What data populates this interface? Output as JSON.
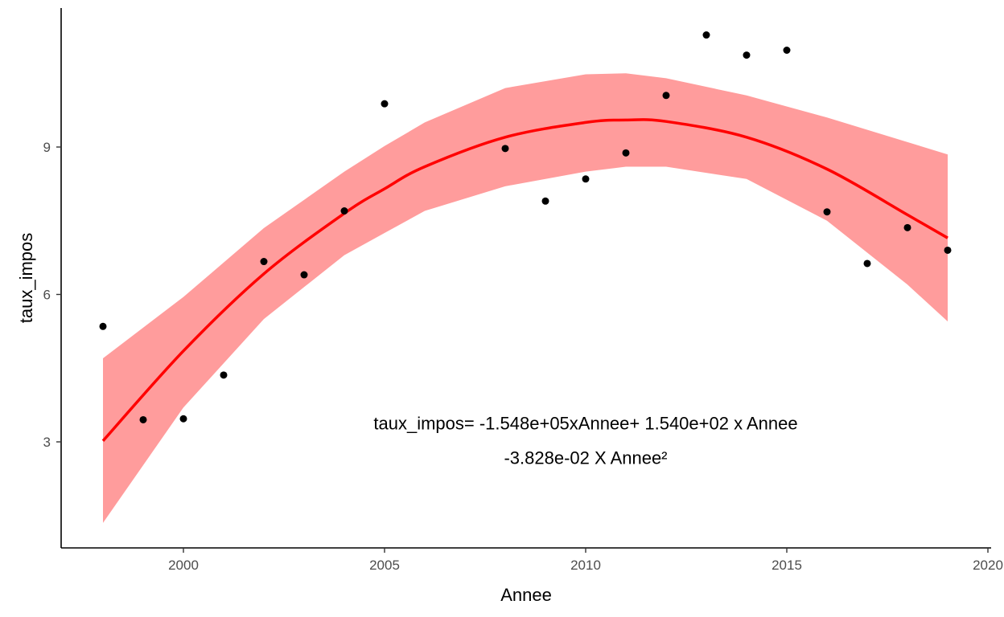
{
  "chart_data": {
    "type": "scatter",
    "xlabel": "Annee",
    "ylabel": "taux_impos",
    "xlim": [
      1997,
      2020
    ],
    "ylim": [
      0.5,
      11.5
    ],
    "x_ticks": [
      2000,
      2005,
      2010,
      2015,
      2020
    ],
    "y_ticks": [
      3,
      6,
      9
    ],
    "grid": false,
    "points": [
      {
        "x": 1998,
        "y": 5.35
      },
      {
        "x": 1999,
        "y": 3.45
      },
      {
        "x": 2000,
        "y": 3.47
      },
      {
        "x": 2001,
        "y": 4.36
      },
      {
        "x": 2002,
        "y": 6.67
      },
      {
        "x": 2003,
        "y": 6.4
      },
      {
        "x": 2004,
        "y": 7.7
      },
      {
        "x": 2005,
        "y": 9.88
      },
      {
        "x": 2008,
        "y": 8.97
      },
      {
        "x": 2009,
        "y": 7.9
      },
      {
        "x": 2010,
        "y": 8.35
      },
      {
        "x": 2011,
        "y": 8.88
      },
      {
        "x": 2012,
        "y": 10.05
      },
      {
        "x": 2013,
        "y": 11.28
      },
      {
        "x": 2014,
        "y": 10.87
      },
      {
        "x": 2015,
        "y": 10.97
      },
      {
        "x": 2016,
        "y": 7.68
      },
      {
        "x": 2017,
        "y": 6.63
      },
      {
        "x": 2018,
        "y": 7.36
      },
      {
        "x": 2019,
        "y": 6.9
      }
    ],
    "fit": {
      "method": "quadratic",
      "x": [
        1998,
        2000,
        2002,
        2004,
        2005,
        2006,
        2008,
        2010,
        2011,
        2012,
        2014,
        2016,
        2018,
        2019
      ],
      "y": [
        3.02,
        4.85,
        6.42,
        7.65,
        8.15,
        8.6,
        9.2,
        9.5,
        9.55,
        9.52,
        9.2,
        8.55,
        7.62,
        7.15
      ]
    },
    "confidence_band": {
      "x": [
        1998,
        2000,
        2002,
        2004,
        2005,
        2006,
        2008,
        2010,
        2011,
        2012,
        2014,
        2016,
        2018,
        2019
      ],
      "upper": [
        4.7,
        5.95,
        7.35,
        8.5,
        9.02,
        9.5,
        10.2,
        10.48,
        10.5,
        10.4,
        10.05,
        9.6,
        9.1,
        8.85
      ],
      "lower": [
        1.35,
        3.7,
        5.5,
        6.8,
        7.25,
        7.7,
        8.2,
        8.5,
        8.6,
        8.6,
        8.35,
        7.5,
        6.2,
        5.45
      ]
    },
    "colors": {
      "points": "#000000",
      "fit_line": "#ff0000",
      "band": "#ff9c9c",
      "axis": "#000000",
      "tick_text": "#4d4d4d"
    },
    "annotation": {
      "line1": "taux_impos= -1.548e+05xAnnee+ 1.540e+02 x Annee",
      "line2": "-3.828e-02 X Annee²",
      "anchor_x": 2010,
      "anchor_y1": 3.25,
      "anchor_y2": 2.55
    }
  }
}
